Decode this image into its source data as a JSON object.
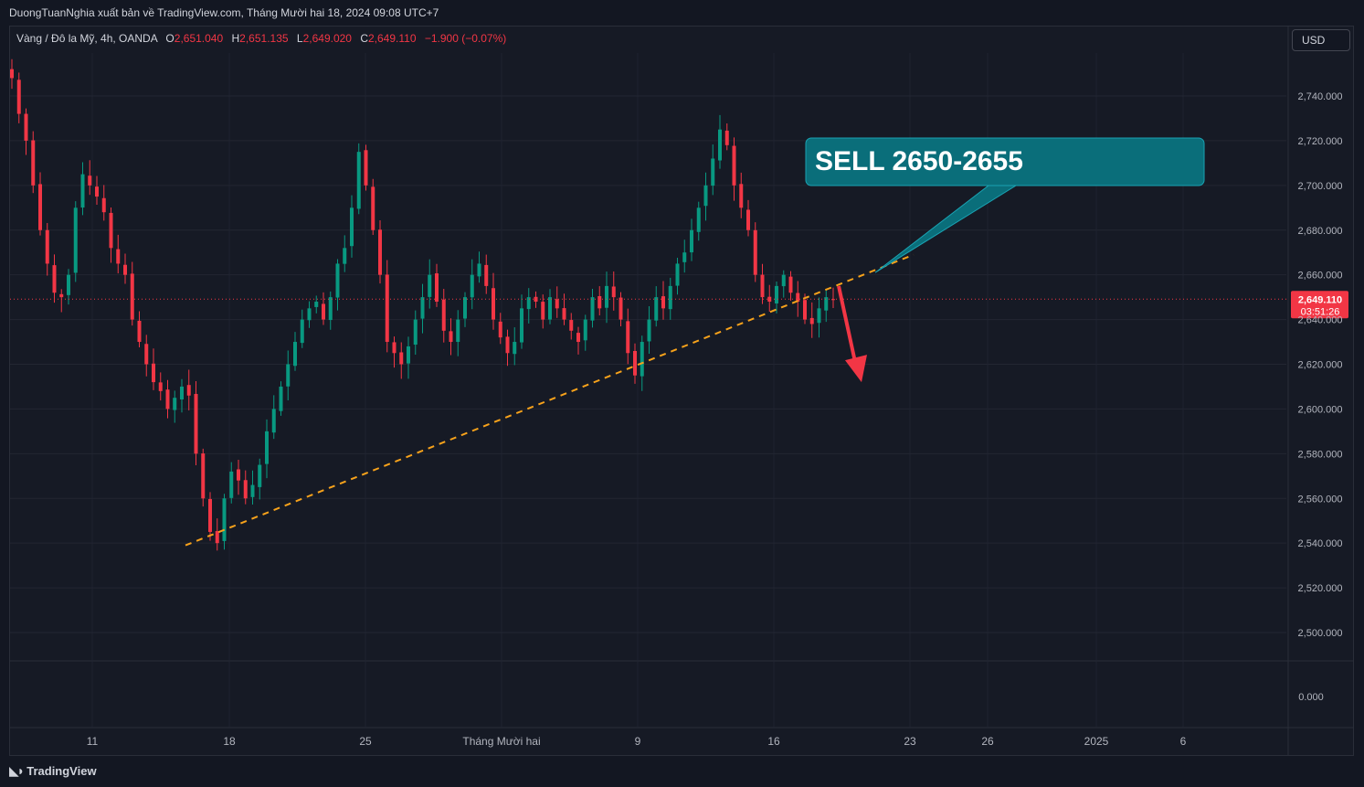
{
  "header": {
    "published": "DuongTuanNghia xuất bản về TradingView.com, Tháng Mười hai 18, 2024 09:08 UTC+7"
  },
  "legend": {
    "symbol": "Vàng / Đô la Mỹ, 4h, OANDA",
    "o_label": "O",
    "o_value": "2,651.040",
    "h_label": "H",
    "h_value": "2,651.135",
    "l_label": "L",
    "l_value": "2,649.020",
    "c_label": "C",
    "c_value": "2,649.110",
    "change": "−1.900 (−0.07%)"
  },
  "currency_button": "USD",
  "branding": {
    "logo_text": "TradingView",
    "logo_icon": "tradingview-logo-icon"
  },
  "colors": {
    "up": "#089981",
    "down": "#f23645",
    "trendline": "#f7a21b",
    "callout": "#0a6e7a",
    "price_tag": "#f23645"
  },
  "chart_data": {
    "type": "candlestick",
    "symbol": "XAUUSD",
    "timeframe": "4h",
    "ylim": [
      2490,
      2755
    ],
    "y_ticks": [
      "2,740.000",
      "2,720.000",
      "2,700.000",
      "2,680.000",
      "2,660.000",
      "2,640.000",
      "2,620.000",
      "2,600.000",
      "2,580.000",
      "2,560.000",
      "2,540.000",
      "2,520.000",
      "2,500.000"
    ],
    "y_tick_values": [
      2740,
      2720,
      2700,
      2680,
      2660,
      2640,
      2620,
      2600,
      2580,
      2560,
      2540,
      2520,
      2500
    ],
    "volume_axis_tick": "0.000",
    "x_ticks": [
      "11",
      "18",
      "25",
      "Tháng Mười hai",
      "9",
      "16",
      "23",
      "26",
      "2025",
      "6"
    ],
    "last_price": "2,649.110",
    "last_price_value": 2649.11,
    "countdown": "03:51:26",
    "annotation": {
      "text": "SELL 2650-2655"
    },
    "trendline": {
      "from": [
        0,
        2539
      ],
      "to": [
        1,
        2669
      ]
    },
    "arrow": {
      "direction": "down",
      "from_price": 2655,
      "to_price": 2612
    },
    "candles_close": [
      2748,
      2732,
      2720,
      2700,
      2680,
      2665,
      2652,
      2650,
      2660,
      2690,
      2705,
      2700,
      2695,
      2688,
      2672,
      2665,
      2660,
      2640,
      2630,
      2620,
      2612,
      2608,
      2600,
      2605,
      2610,
      2606,
      2580,
      2560,
      2545,
      2540,
      2560,
      2572,
      2568,
      2560,
      2566,
      2575,
      2590,
      2600,
      2610,
      2620,
      2630,
      2640,
      2645,
      2648,
      2640,
      2650,
      2665,
      2672,
      2690,
      2715,
      2700,
      2680,
      2660,
      2630,
      2625,
      2620,
      2628,
      2640,
      2650,
      2660,
      2648,
      2635,
      2630,
      2640,
      2650,
      2660,
      2665,
      2655,
      2640,
      2632,
      2625,
      2630,
      2645,
      2650,
      2648,
      2640,
      2650,
      2645,
      2640,
      2635,
      2630,
      2640,
      2650,
      2645,
      2655,
      2650,
      2640,
      2625,
      2615,
      2630,
      2640,
      2650,
      2645,
      2655,
      2665,
      2670,
      2680,
      2690,
      2700,
      2712,
      2725,
      2718,
      2700,
      2690,
      2680,
      2660,
      2650,
      2648,
      2655,
      2660,
      2652,
      2648,
      2640,
      2638,
      2645,
      2650,
      2649
    ]
  }
}
